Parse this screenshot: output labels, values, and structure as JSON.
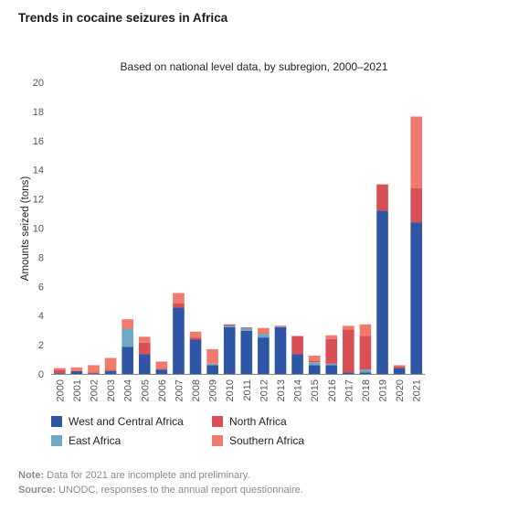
{
  "chart_data": {
    "type": "bar",
    "stacked": true,
    "title": "Trends in cocaine seizures in Africa",
    "subtitle": "Based on national level data, by subregion, 2000–2021",
    "xlabel": "",
    "ylabel": "Amounts seized (tons)",
    "ylim": [
      0,
      20
    ],
    "yticks": [
      0,
      2,
      4,
      6,
      8,
      10,
      12,
      14,
      16,
      18,
      20
    ],
    "grid": false,
    "legend_position": "bottom",
    "categories": [
      "2000",
      "2001",
      "2002",
      "2003",
      "2004",
      "2005",
      "2006",
      "2007",
      "2008",
      "2009",
      "2010",
      "2011",
      "2012",
      "2013",
      "2014",
      "2015",
      "2016",
      "2017",
      "2018",
      "2019",
      "2020",
      "2021"
    ],
    "series": [
      {
        "name": "West and Central Africa",
        "color": "#2f56a4",
        "values": [
          0.05,
          0.2,
          0.05,
          0.2,
          1.85,
          1.35,
          0.3,
          4.55,
          2.35,
          0.6,
          3.2,
          2.95,
          2.5,
          3.2,
          1.35,
          0.6,
          0.6,
          0.1,
          0.1,
          11.2,
          0.4,
          10.4
        ]
      },
      {
        "name": "East Africa",
        "color": "#6fa8c4",
        "values": [
          0,
          0,
          0,
          0,
          1.25,
          0,
          0,
          0,
          0,
          0.1,
          0.1,
          0.2,
          0.25,
          0.05,
          0,
          0.2,
          0.1,
          0,
          0.2,
          0,
          0,
          0
        ]
      },
      {
        "name": "North Africa",
        "color": "#d84f55",
        "values": [
          0.2,
          0,
          0.05,
          0.1,
          0,
          0.8,
          0.05,
          0.3,
          0.15,
          0,
          0.1,
          0.05,
          0.05,
          0.05,
          1.25,
          0.1,
          1.7,
          2.95,
          2.3,
          1.8,
          0.1,
          2.35
        ]
      },
      {
        "name": "Southern Africa",
        "color": "#f07b6c",
        "values": [
          0.15,
          0.25,
          0.5,
          0.8,
          0.65,
          0.4,
          0.5,
          0.7,
          0.4,
          1.0,
          0,
          0,
          0.35,
          0,
          0,
          0.35,
          0.25,
          0.25,
          0.8,
          0,
          0.1,
          4.9
        ]
      }
    ]
  },
  "notes": {
    "note_label": "Note:",
    "note_text": "Data for 2021 are incomplete and preliminary.",
    "source_label": "Source:",
    "source_text": "UNODC, responses to the annual report questionnaire."
  }
}
